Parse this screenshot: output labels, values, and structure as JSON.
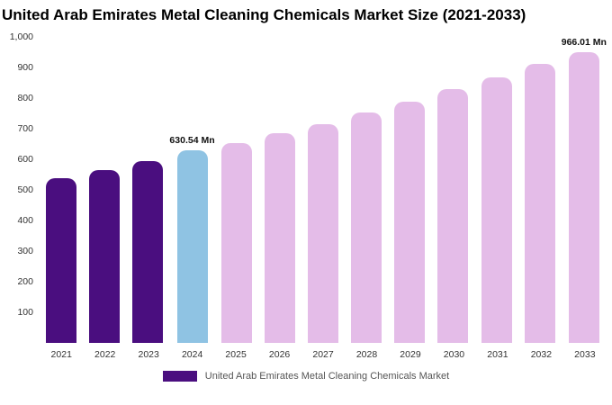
{
  "title": "United Arab Emirates Metal Cleaning Chemicals Market Size (2021-2033)",
  "legend": {
    "label": "United Arab Emirates Metal Cleaning Chemicals Market",
    "swatch_color": "#4A0E7F"
  },
  "colors": {
    "historical_purple": "#4A0E7F",
    "highlight_blue": "#8FC3E3",
    "forecast_plum": "#E4BCE8"
  },
  "chart_data": {
    "type": "bar",
    "title": "United Arab Emirates Metal Cleaning Chemicals Market Size (2021-2033)",
    "xlabel": "",
    "ylabel": "",
    "ylim": [
      0,
      1000
    ],
    "grid": false,
    "legend_position": "bottom",
    "categories": [
      "2021",
      "2022",
      "2023",
      "2024",
      "2025",
      "2026",
      "2027",
      "2028",
      "2029",
      "2030",
      "2031",
      "2032",
      "2033"
    ],
    "values": [
      538,
      565,
      594,
      630.54,
      653,
      685,
      716,
      753,
      789,
      829,
      868,
      913,
      966.01
    ],
    "bar_labels": [
      "",
      "",
      "",
      "630.54 Mn",
      "",
      "",
      "",
      "",
      "",
      "",
      "",
      "",
      "966.01 Mn"
    ],
    "bar_colors": [
      "#4A0E7F",
      "#4A0E7F",
      "#4A0E7F",
      "#8FC3E3",
      "#E4BCE8",
      "#E4BCE8",
      "#E4BCE8",
      "#E4BCE8",
      "#E4BCE8",
      "#E4BCE8",
      "#E4BCE8",
      "#E4BCE8",
      "#E4BCE8"
    ],
    "yticks": [
      {
        "value": 1000,
        "label": "1,000"
      },
      {
        "value": 900,
        "label": "900"
      },
      {
        "value": 800,
        "label": "800"
      },
      {
        "value": 700,
        "label": "700"
      },
      {
        "value": 600,
        "label": "600"
      },
      {
        "value": 500,
        "label": "500"
      },
      {
        "value": 400,
        "label": "400"
      },
      {
        "value": 300,
        "label": "300"
      },
      {
        "value": 200,
        "label": "200"
      },
      {
        "value": 100,
        "label": "100"
      }
    ]
  }
}
